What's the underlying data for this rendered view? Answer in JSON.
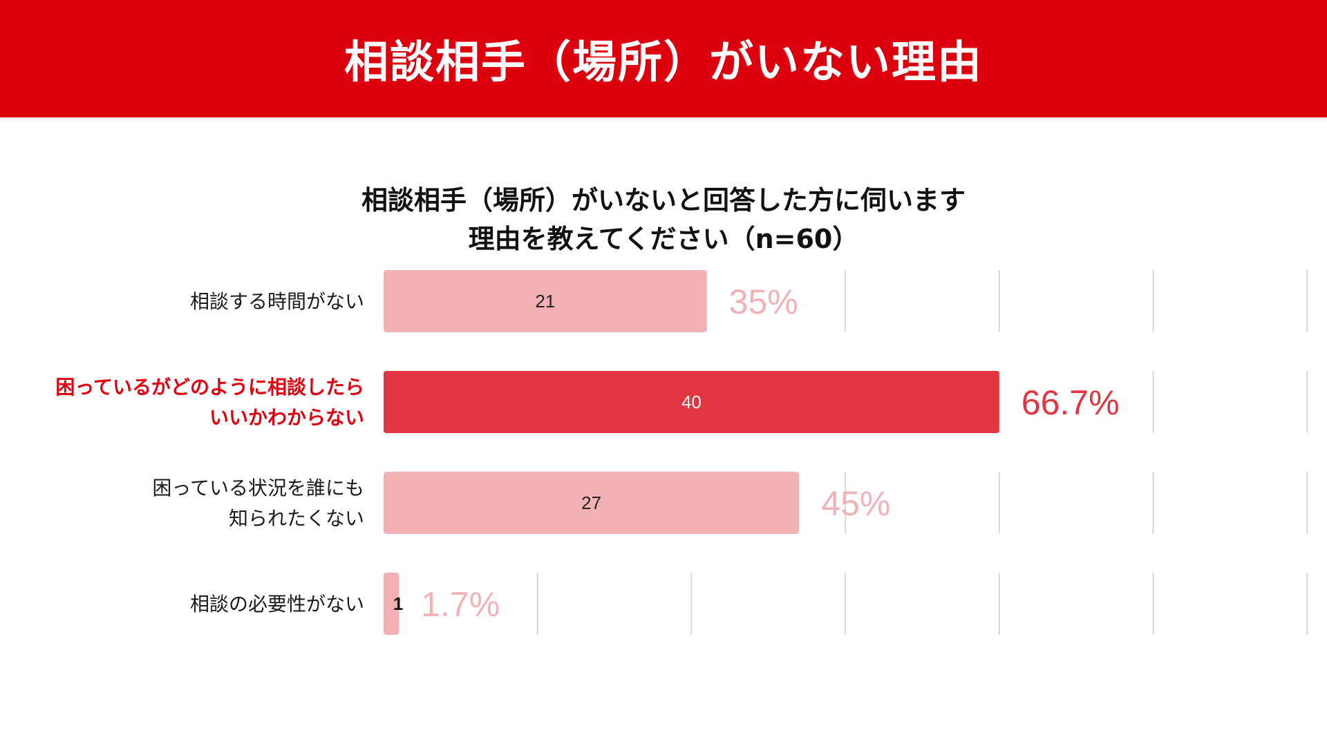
{
  "header": {
    "title": "相談相手（場所）がいない理由"
  },
  "question": {
    "line1": "相談相手（場所）がいないと回答した方に伺います",
    "line2": "理由を教えてください（n=60）"
  },
  "colors": {
    "banner": "#dc000e",
    "bar_normal": "#f2b2b5",
    "bar_highlight": "#e13641",
    "pct_normal": "#f2b2b5",
    "pct_highlight": "#e13641",
    "label_highlight": "#e0000e"
  },
  "chart_data": {
    "type": "bar",
    "orientation": "horizontal",
    "categories": [
      [
        "相談する時間がない"
      ],
      [
        "困っているがどのように相談したら",
        "いいかわからない"
      ],
      [
        "困っている状況を誰にも",
        "知られたくない"
      ],
      [
        "相談の必要性がない"
      ]
    ],
    "values": [
      21,
      40,
      27,
      1
    ],
    "percent_labels": [
      "35%",
      "66.7%",
      "45%",
      "1.7%"
    ],
    "highlight_index": 1,
    "xlim": [
      0,
      60
    ],
    "grid_step": 10,
    "grid": true
  }
}
